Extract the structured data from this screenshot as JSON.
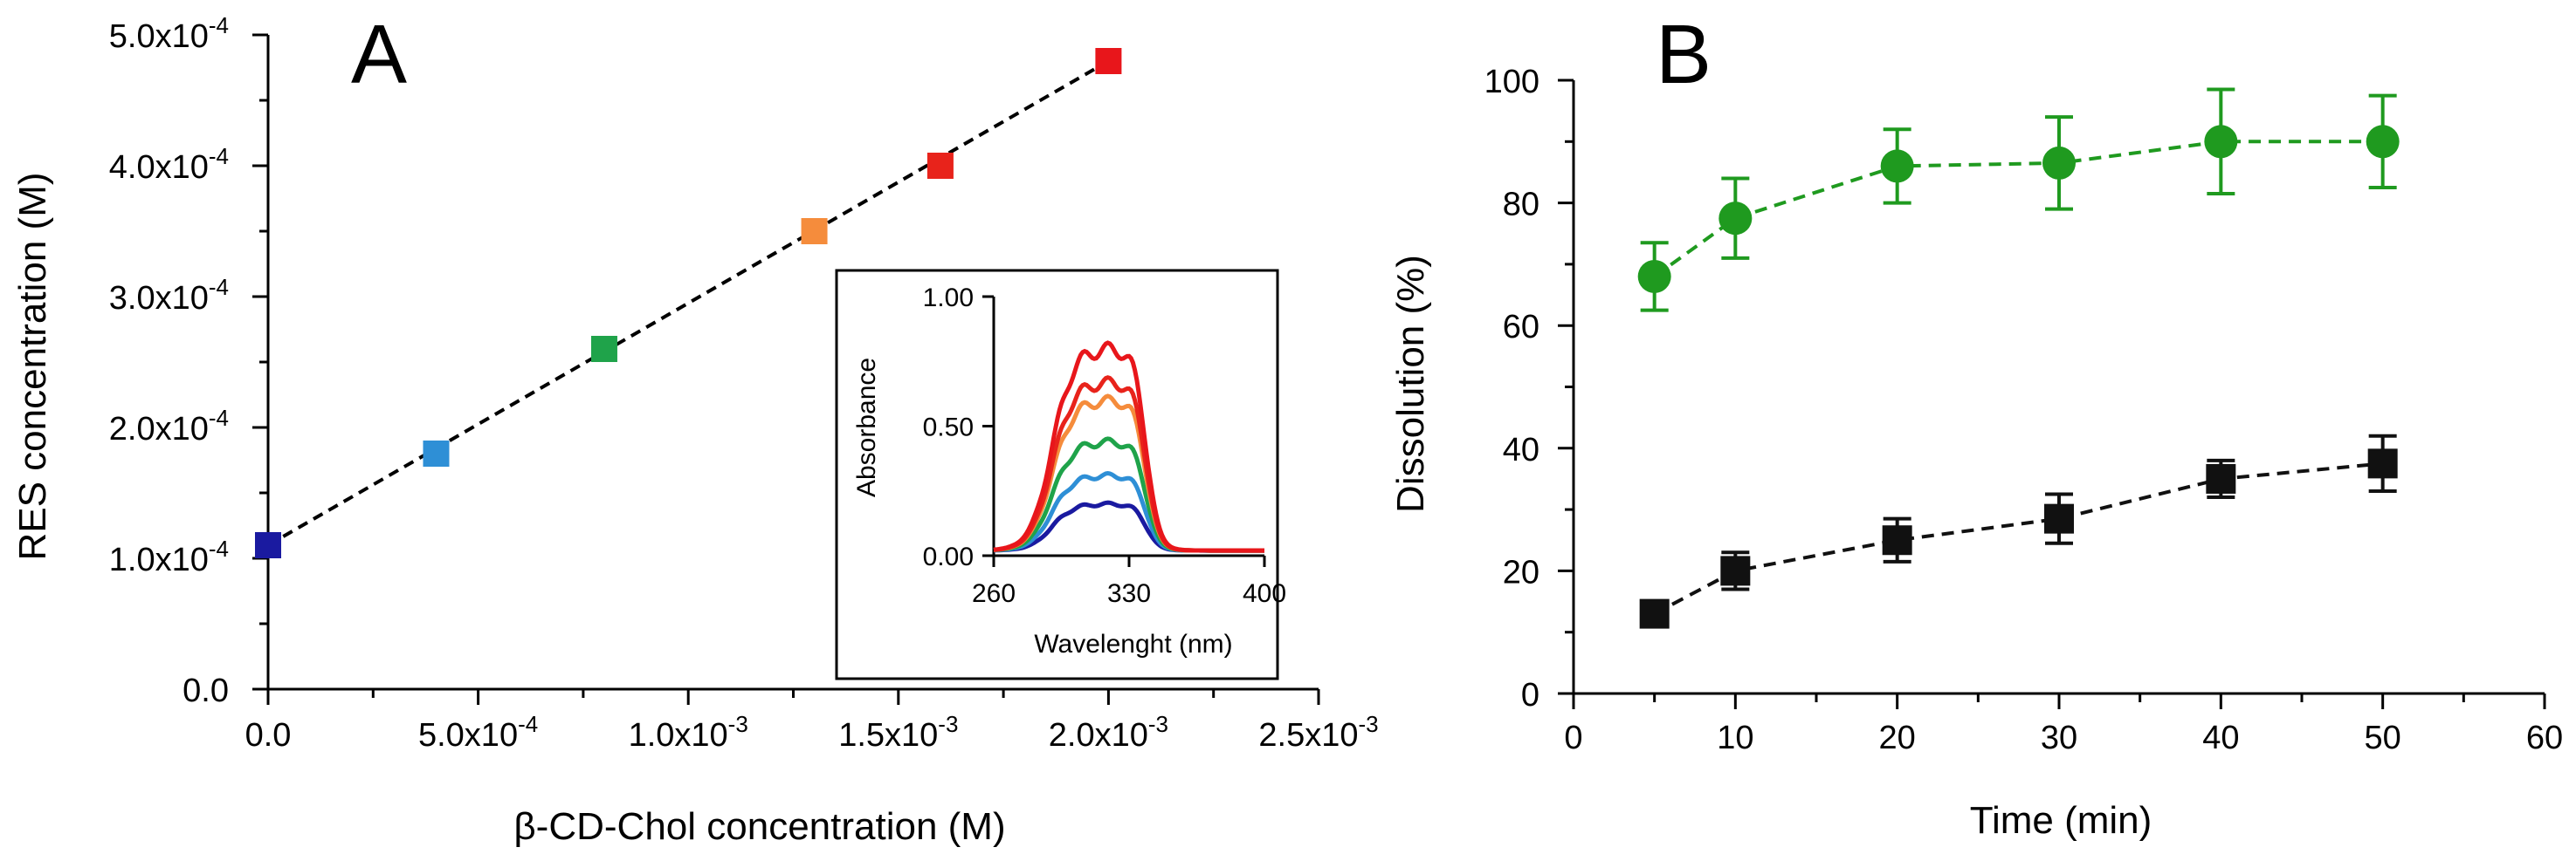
{
  "chart_data": [
    {
      "panel_label": "A",
      "type": "scatter",
      "xlabel": "β-CD-Chol concentration (M)",
      "ylabel": "RES concentration (M)",
      "xlim": [
        0,
        0.0025
      ],
      "ylim": [
        0,
        0.0005
      ],
      "x_ticks": [
        {
          "value": 0,
          "label": "0.0"
        },
        {
          "value": 0.0005,
          "label": "5.0x10",
          "exp": "-4"
        },
        {
          "value": 0.001,
          "label": "1.0x10",
          "exp": "-3"
        },
        {
          "value": 0.0015,
          "label": "1.5x10",
          "exp": "-3"
        },
        {
          "value": 0.002,
          "label": "2.0x10",
          "exp": "-3"
        },
        {
          "value": 0.0025,
          "label": "2.5x10",
          "exp": "-3"
        }
      ],
      "y_ticks": [
        {
          "value": 0,
          "label": "0.0"
        },
        {
          "value": 0.0001,
          "label": "1.0x10",
          "exp": "-4"
        },
        {
          "value": 0.0002,
          "label": "2.0x10",
          "exp": "-4"
        },
        {
          "value": 0.0003,
          "label": "3.0x10",
          "exp": "-4"
        },
        {
          "value": 0.0004,
          "label": "4.0x10",
          "exp": "-4"
        },
        {
          "value": 0.0005,
          "label": "5.0x10",
          "exp": "-4"
        }
      ],
      "points": [
        {
          "x": 0,
          "y": 0.00011,
          "color": "#1a1aa0"
        },
        {
          "x": 0.0004,
          "y": 0.00018,
          "color": "#2e8fd6"
        },
        {
          "x": 0.0008,
          "y": 0.00026,
          "color": "#1fa34a"
        },
        {
          "x": 0.0013,
          "y": 0.00035,
          "color": "#f58c3c"
        },
        {
          "x": 0.0016,
          "y": 0.0004,
          "color": "#e8231b"
        },
        {
          "x": 0.002,
          "y": 0.00048,
          "color": "#e8161b"
        }
      ],
      "fit_line": {
        "x": [
          0,
          0.002
        ],
        "y": [
          0.00011,
          0.00048
        ],
        "style": "dashed",
        "color": "#000000"
      },
      "inset": {
        "type": "line",
        "xlabel": "Wavelenght (nm)",
        "ylabel": "Absorbance",
        "xlim": [
          260,
          400
        ],
        "ylim": [
          0,
          1.0
        ],
        "x_ticks": [
          {
            "value": 260,
            "label": "260"
          },
          {
            "value": 330,
            "label": "330"
          },
          {
            "value": 400,
            "label": "400"
          }
        ],
        "y_ticks": [
          {
            "value": 0,
            "label": "0.00"
          },
          {
            "value": 0.5,
            "label": "0.50"
          },
          {
            "value": 1.0,
            "label": "1.00"
          }
        ],
        "series": [
          {
            "peak": 0.18,
            "color": "#1a1aa0"
          },
          {
            "peak": 0.29,
            "color": "#2e8fd6"
          },
          {
            "peak": 0.42,
            "color": "#1fa34a"
          },
          {
            "peak": 0.58,
            "color": "#f58c3c"
          },
          {
            "peak": 0.65,
            "color": "#e8231b"
          },
          {
            "peak": 0.78,
            "color": "#e8161b"
          }
        ]
      }
    },
    {
      "panel_label": "B",
      "type": "line",
      "xlabel": "Time (min)",
      "ylabel": "Dissolution (%)",
      "xlim": [
        0,
        60
      ],
      "ylim": [
        0,
        100
      ],
      "x_ticks": [
        0,
        10,
        20,
        30,
        40,
        50,
        60
      ],
      "y_ticks": [
        0,
        20,
        40,
        60,
        80,
        100
      ],
      "series": [
        {
          "name": "green",
          "marker": "circle",
          "color": "#1f9a1f",
          "x": [
            5,
            10,
            20,
            30,
            40,
            50
          ],
          "y": [
            68,
            77.5,
            86,
            86.5,
            90,
            90
          ],
          "err": [
            5.5,
            6.5,
            6,
            7.5,
            8.5,
            7.5
          ]
        },
        {
          "name": "black",
          "marker": "square",
          "color": "#111111",
          "x": [
            5,
            10,
            20,
            30,
            40,
            50
          ],
          "y": [
            13,
            20,
            25,
            28.5,
            35,
            37.5
          ],
          "err": [
            2,
            3,
            3.5,
            4,
            3,
            4.5
          ]
        }
      ]
    }
  ]
}
